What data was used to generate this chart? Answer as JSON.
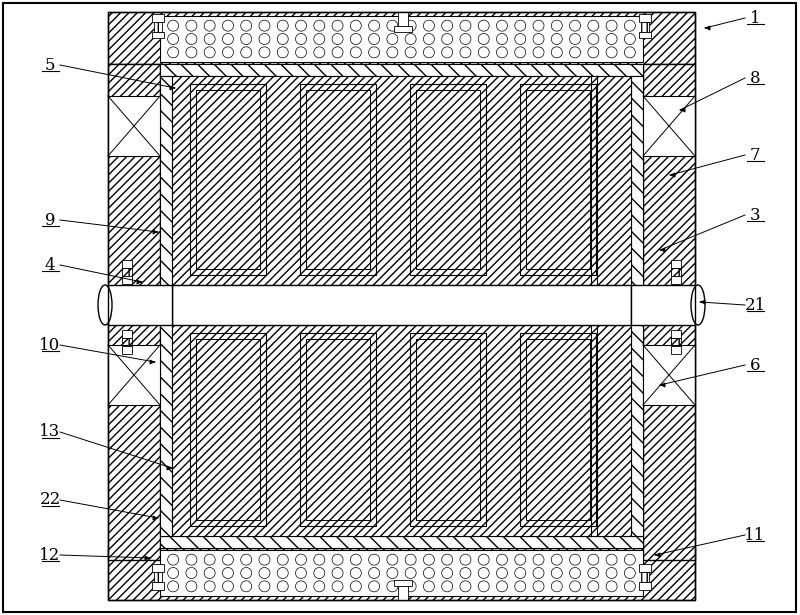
{
  "bg_color": "#ffffff",
  "figsize": [
    8.0,
    6.15
  ],
  "dpi": 100,
  "labels_data": [
    [
      "1",
      755,
      18,
      705,
      28,
      "right"
    ],
    [
      "8",
      755,
      78,
      680,
      110,
      "right"
    ],
    [
      "7",
      755,
      155,
      670,
      175,
      "right"
    ],
    [
      "3",
      755,
      215,
      660,
      250,
      "right"
    ],
    [
      "21",
      755,
      305,
      700,
      302,
      "right"
    ],
    [
      "6",
      755,
      365,
      660,
      385,
      "right"
    ],
    [
      "11",
      755,
      535,
      655,
      555,
      "right"
    ],
    [
      "5",
      50,
      65,
      175,
      88,
      "left"
    ],
    [
      "9",
      50,
      220,
      158,
      232,
      "left"
    ],
    [
      "4",
      50,
      265,
      142,
      282,
      "left"
    ],
    [
      "10",
      50,
      345,
      155,
      362,
      "left"
    ],
    [
      "13",
      50,
      432,
      172,
      468,
      "left"
    ],
    [
      "22",
      50,
      500,
      158,
      518,
      "left"
    ],
    [
      "12",
      50,
      555,
      150,
      558,
      "left"
    ]
  ]
}
